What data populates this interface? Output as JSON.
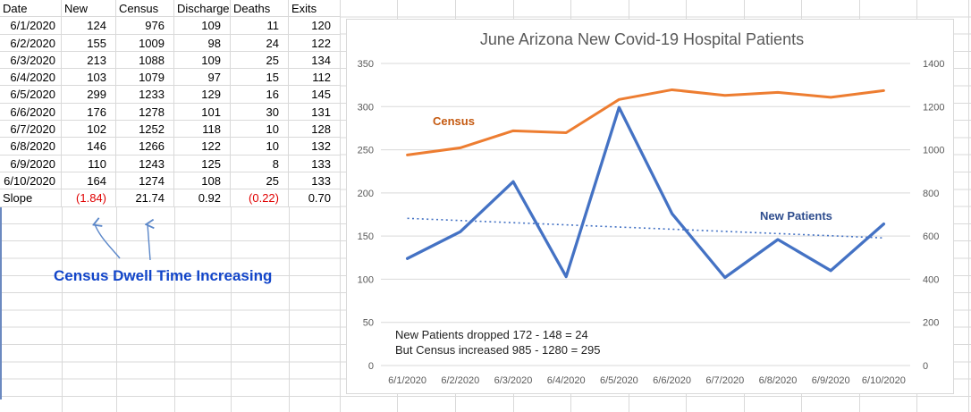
{
  "sheet": {
    "annotation": {
      "text": "Census Dwell Time Increasing"
    }
  },
  "table": {
    "headers": [
      "Date",
      "New",
      "Census",
      "Discharge",
      "Deaths",
      "Exits"
    ],
    "rows": [
      [
        "6/1/2020",
        "124",
        "976",
        "109",
        "11",
        "120"
      ],
      [
        "6/2/2020",
        "155",
        "1009",
        "98",
        "24",
        "122"
      ],
      [
        "6/3/2020",
        "213",
        "1088",
        "109",
        "25",
        "134"
      ],
      [
        "6/4/2020",
        "103",
        "1079",
        "97",
        "15",
        "112"
      ],
      [
        "6/5/2020",
        "299",
        "1233",
        "129",
        "16",
        "145"
      ],
      [
        "6/6/2020",
        "176",
        "1278",
        "101",
        "30",
        "131"
      ],
      [
        "6/7/2020",
        "102",
        "1252",
        "118",
        "10",
        "128"
      ],
      [
        "6/8/2020",
        "146",
        "1266",
        "122",
        "10",
        "132"
      ],
      [
        "6/9/2020",
        "110",
        "1243",
        "125",
        "8",
        "133"
      ],
      [
        "6/10/2020",
        "164",
        "1274",
        "108",
        "25",
        "133"
      ]
    ],
    "slope": {
      "label": "Slope",
      "values": [
        "(1.84)",
        "21.74",
        "0.92",
        "(0.22)",
        "0.70"
      ],
      "negative": [
        true,
        false,
        false,
        true,
        false
      ]
    }
  },
  "chart_data": {
    "type": "line",
    "title": "June Arizona New Covid-19 Hospital Patients",
    "x": [
      "6/1/2020",
      "6/2/2020",
      "6/3/2020",
      "6/4/2020",
      "6/5/2020",
      "6/6/2020",
      "6/7/2020",
      "6/8/2020",
      "6/9/2020",
      "6/10/2020"
    ],
    "series": [
      {
        "name": "Census",
        "axis": "right",
        "color": "#ED7D31",
        "label_color": "#C55A11",
        "values": [
          976,
          1009,
          1088,
          1079,
          1233,
          1278,
          1252,
          1266,
          1243,
          1274
        ]
      },
      {
        "name": "New Patients",
        "axis": "left",
        "color": "#4472C4",
        "label_color": "#2E4D8E",
        "values": [
          124,
          155,
          213,
          103,
          299,
          176,
          102,
          146,
          110,
          164
        ]
      }
    ],
    "trendline": {
      "series": "New Patients",
      "style": "dotted",
      "color": "#4472C4"
    },
    "left_axis": {
      "min": 0,
      "max": 350,
      "step": 50
    },
    "right_axis": {
      "min": 0,
      "max": 1400,
      "step": 200
    },
    "grid": true,
    "legend_position": "none",
    "annotations": [
      "New Patients dropped 172 - 148  = 24",
      "But Census increased 985 - 1280  = 295"
    ]
  },
  "colors": {
    "sheet_grid": "#d9d9d9",
    "chart_grid": "#d9d9d9",
    "axis_text": "#595959",
    "negative_red": "#e00000",
    "note_blue": "#1245c9",
    "arrow_blue": "#5b87c9"
  }
}
